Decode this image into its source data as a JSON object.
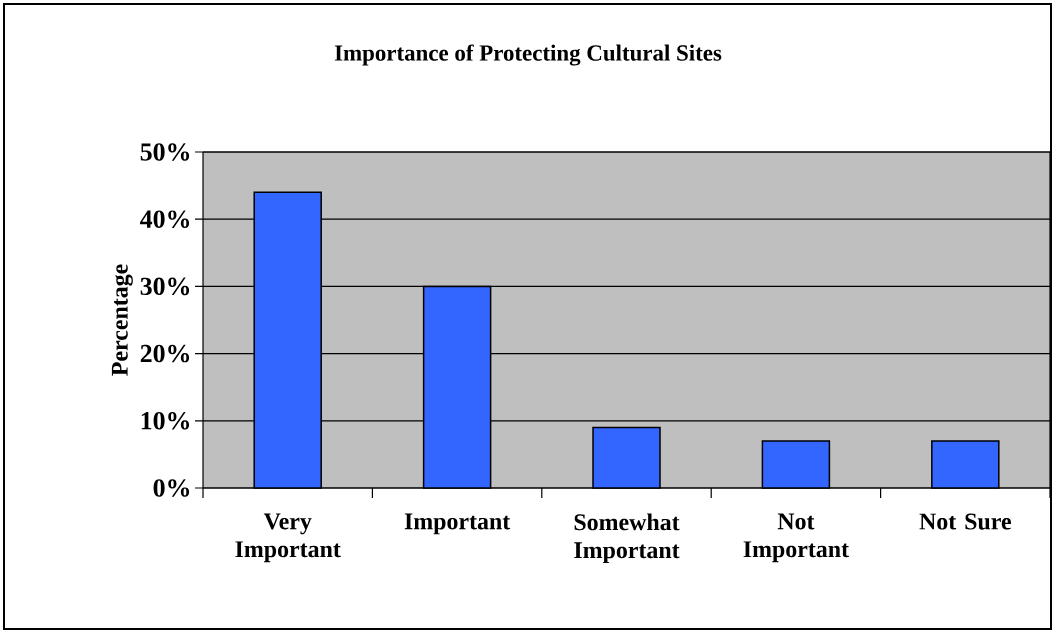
{
  "chart_data": {
    "type": "bar",
    "title": "Importance of Protecting Cultural Sites",
    "ylabel": "Percentage",
    "categories": [
      "Very Important",
      "Important",
      "Somewhat Important",
      "Not Important",
      "Not Sure"
    ],
    "values": [
      44,
      30,
      9,
      7,
      7
    ],
    "color": "#3366ff",
    "ylim": [
      0,
      50
    ],
    "yticks": [
      {
        "value": 0,
        "label": "0%"
      },
      {
        "value": 10,
        "label": "10%"
      },
      {
        "value": 20,
        "label": "20%"
      },
      {
        "value": 30,
        "label": "30%"
      },
      {
        "value": 40,
        "label": "40%"
      },
      {
        "value": 50,
        "label": "50%"
      }
    ],
    "grid": "y"
  }
}
